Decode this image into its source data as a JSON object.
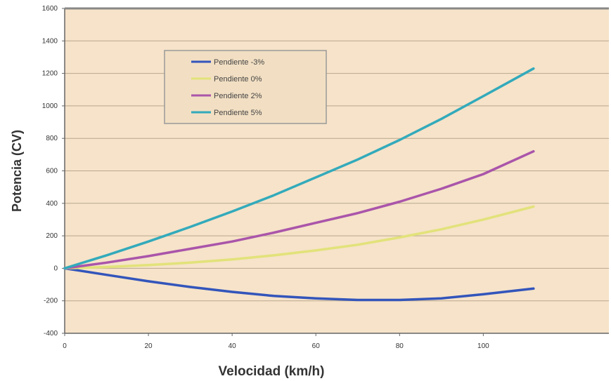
{
  "chart_data": {
    "type": "line",
    "xlabel": "Velocidad (km/h)",
    "ylabel": "Potencia (CV)",
    "xlim": [
      0,
      130
    ],
    "ylim": [
      -400,
      1600
    ],
    "xticks": [
      0,
      20,
      40,
      60,
      80,
      100
    ],
    "yticks": [
      -400,
      -200,
      0,
      200,
      400,
      600,
      800,
      1000,
      1200,
      1400,
      1600
    ],
    "grid": true,
    "legend_position": "top-left",
    "background_color": "#f6e3c9",
    "series": [
      {
        "name": "Pendiente -3%",
        "color": "#3355bb",
        "x": [
          0,
          10,
          20,
          30,
          40,
          50,
          60,
          70,
          80,
          90,
          100,
          112
        ],
        "y": [
          0,
          -40,
          -80,
          -115,
          -145,
          -170,
          -185,
          -195,
          -195,
          -185,
          -160,
          -125
        ]
      },
      {
        "name": "Pendiente 0%",
        "color": "#e2e27a",
        "x": [
          0,
          10,
          20,
          30,
          40,
          50,
          60,
          70,
          80,
          90,
          100,
          112
        ],
        "y": [
          0,
          8,
          20,
          35,
          55,
          80,
          110,
          145,
          190,
          240,
          300,
          380
        ]
      },
      {
        "name": "Pendiente 2%",
        "color": "#aa55aa",
        "x": [
          0,
          10,
          20,
          30,
          40,
          50,
          60,
          70,
          80,
          90,
          100,
          112
        ],
        "y": [
          0,
          35,
          75,
          120,
          165,
          220,
          280,
          340,
          410,
          490,
          580,
          720
        ]
      },
      {
        "name": "Pendiente 5%",
        "color": "#33aabb",
        "x": [
          0,
          10,
          20,
          30,
          40,
          50,
          60,
          70,
          80,
          90,
          100,
          112
        ],
        "y": [
          0,
          80,
          165,
          255,
          350,
          450,
          560,
          670,
          790,
          920,
          1060,
          1230
        ]
      }
    ]
  }
}
